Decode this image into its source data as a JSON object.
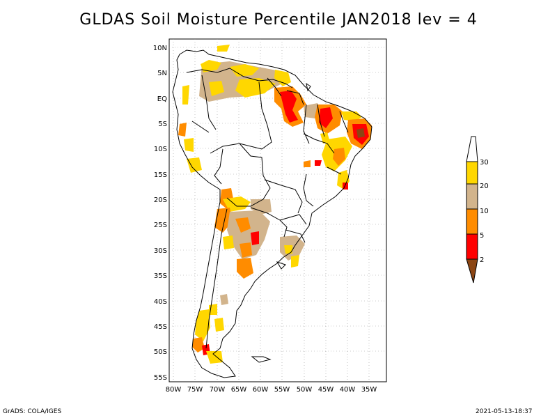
{
  "title": "GLDAS Soil Moisture Percentile JAN2018 lev = 4",
  "credit_left": "GrADS: COLA/IGES",
  "credit_right": "2021-05-13-18:37",
  "map": {
    "lat_labels": [
      "10N",
      "5N",
      "EQ",
      "5S",
      "10S",
      "15S",
      "20S",
      "25S",
      "30S",
      "35S",
      "40S",
      "45S",
      "50S",
      "55S"
    ],
    "lon_labels": [
      "80W",
      "75W",
      "70W",
      "65W",
      "60W",
      "55W",
      "50W",
      "45W",
      "40W",
      "35W"
    ]
  },
  "legend": {
    "levels": [
      "2",
      "5",
      "10",
      "20",
      "30"
    ],
    "colors": {
      "below_2": "#8b4513",
      "2_5": "#ff0000",
      "5_10": "#ff8c00",
      "10_20": "#d2b48c",
      "20_30": "#ffd700",
      "above_30": "#ffffff"
    }
  }
}
